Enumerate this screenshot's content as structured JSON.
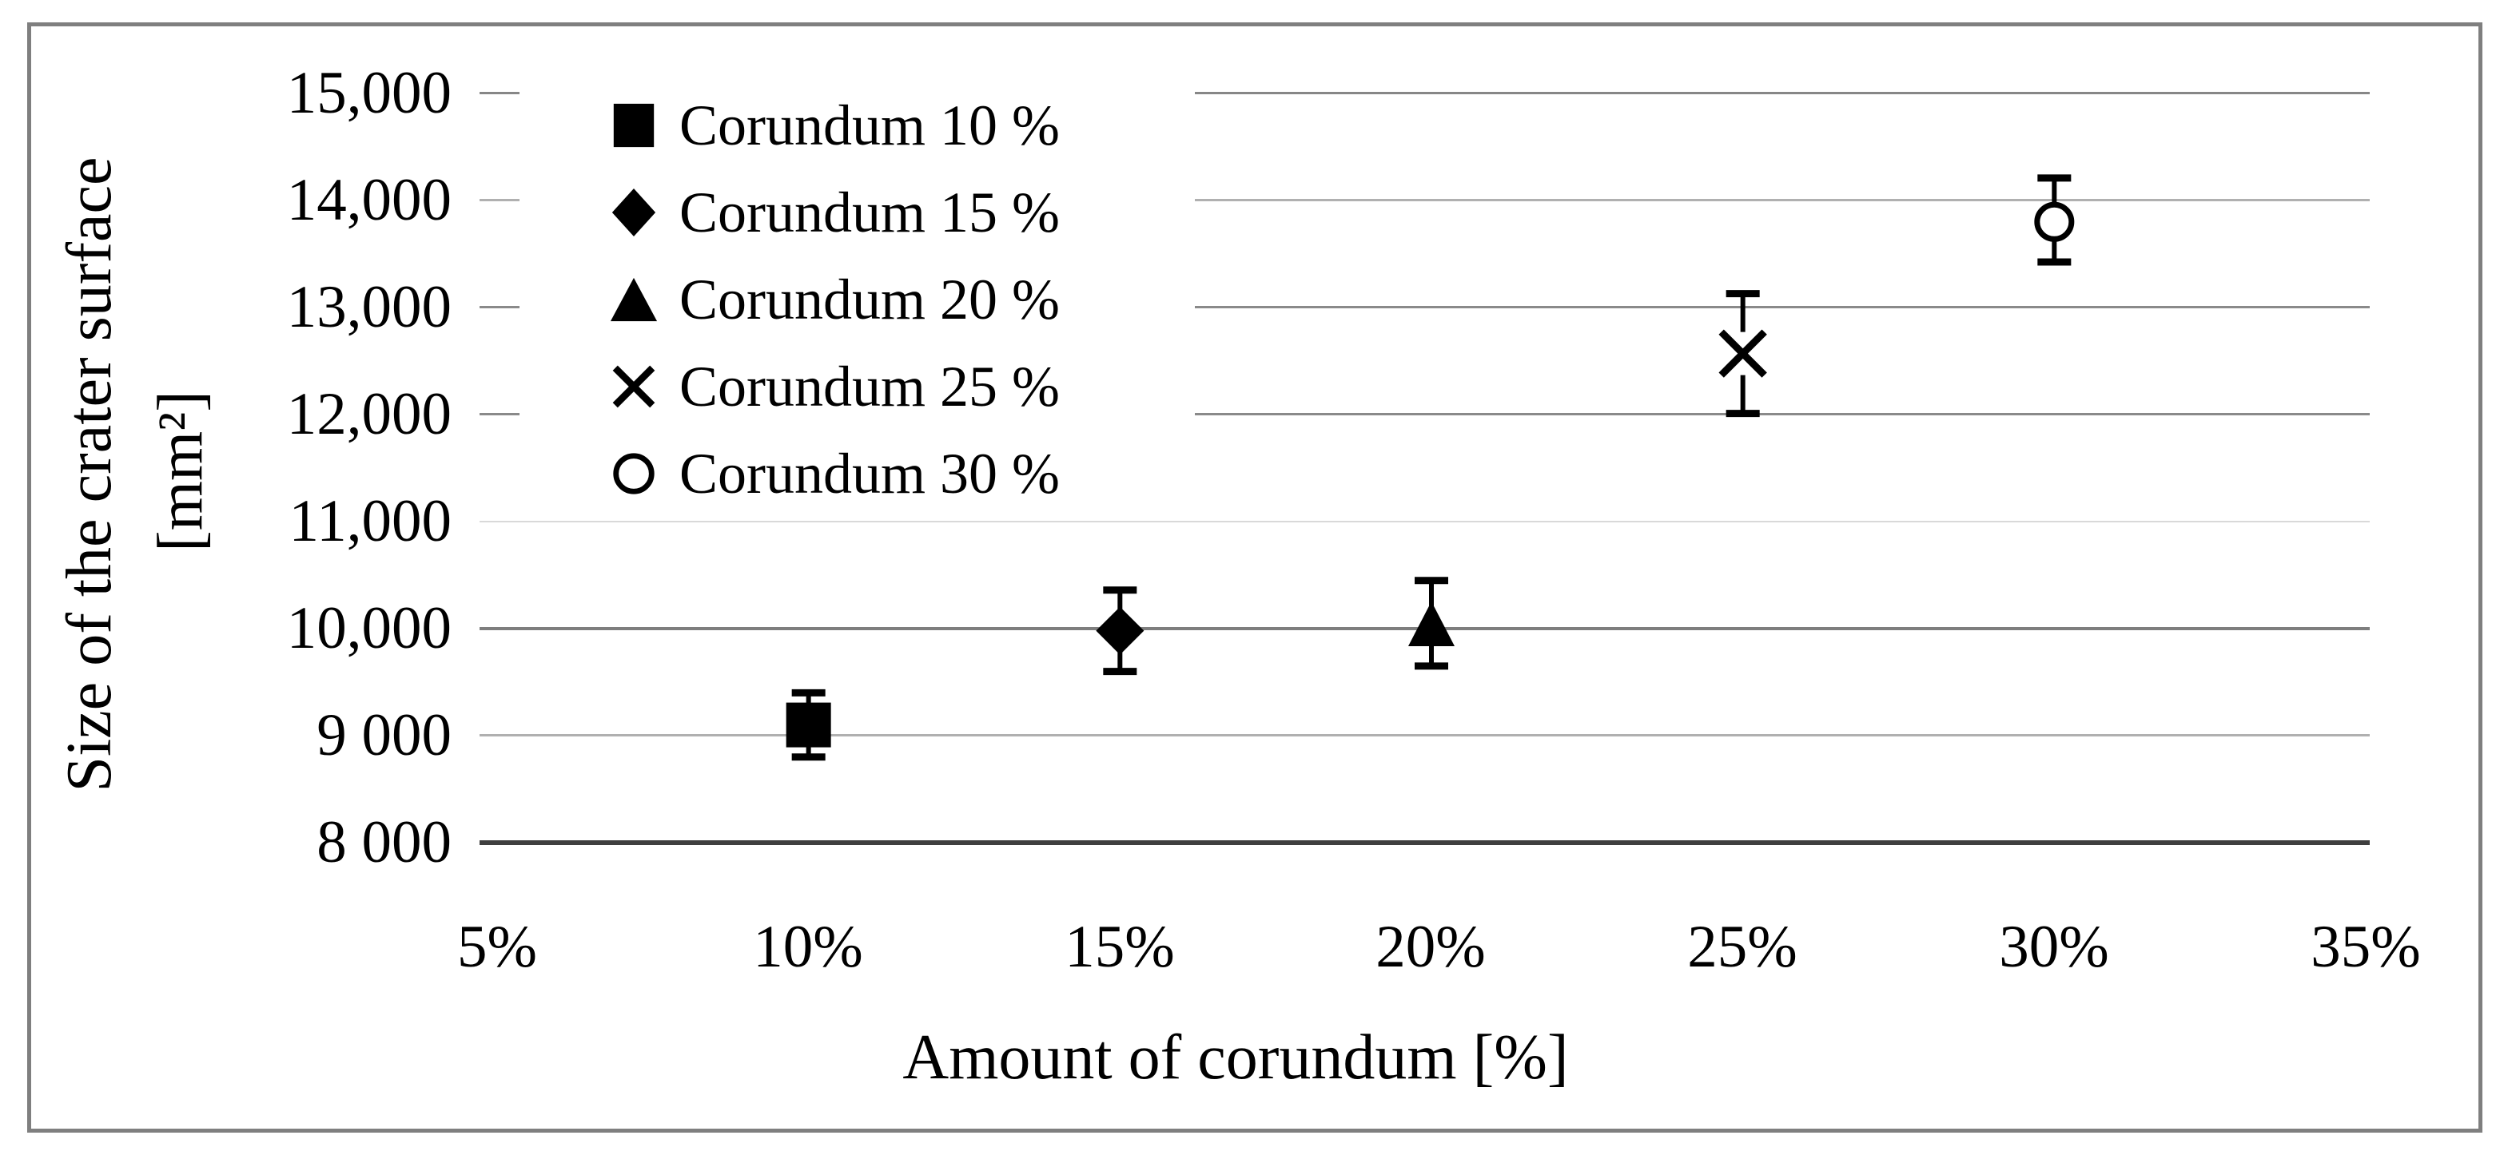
{
  "figure": {
    "background_color": "#ffffff",
    "border_color": "#7f7f7f",
    "marker_color": "#000000",
    "axis_line_color": "#3f3f3f",
    "gridline_color": "#8a8a8a"
  },
  "chart_data": {
    "type": "scatter",
    "title": "",
    "xlabel": "Amount of corundum [%]",
    "ylabel_line1": "Size of the crater surface",
    "ylabel_line2": "[mm²]",
    "xlim": [
      5,
      35
    ],
    "ylim": [
      8000,
      15000
    ],
    "xticks": [
      5,
      10,
      15,
      20,
      25,
      30,
      35
    ],
    "xtick_labels": [
      "5%",
      "10%",
      "15%",
      "20%",
      "25%",
      "30%",
      "35%"
    ],
    "yticks": [
      15000,
      14000,
      13000,
      12000,
      11000,
      10000,
      9000,
      8000
    ],
    "ytick_labels": [
      "15,000",
      "14,000",
      "13,000",
      "12,000",
      "11,000",
      "10,000",
      "9 000",
      "8 000"
    ],
    "grid": "horizontal",
    "legend_position": "upper-left-inside",
    "series": [
      {
        "name": "Corundum 10 %",
        "marker": "filled-square",
        "x": 10,
        "y": 9100,
        "error_plus": 300,
        "error_minus": 300
      },
      {
        "name": "Corundum 15 %",
        "marker": "filled-diamond",
        "x": 15,
        "y": 9980,
        "error_plus": 380,
        "error_minus": 380
      },
      {
        "name": "Corundum 20 %",
        "marker": "filled-triangle",
        "x": 20,
        "y": 10030,
        "error_plus": 420,
        "error_minus": 380
      },
      {
        "name": "Corundum 25 %",
        "marker": "x-cross",
        "x": 25,
        "y": 12570,
        "error_plus": 560,
        "error_minus": 560
      },
      {
        "name": "Corundum 30 %",
        "marker": "open-circle",
        "x": 30,
        "y": 13800,
        "error_plus": 410,
        "error_minus": 375
      }
    ]
  }
}
